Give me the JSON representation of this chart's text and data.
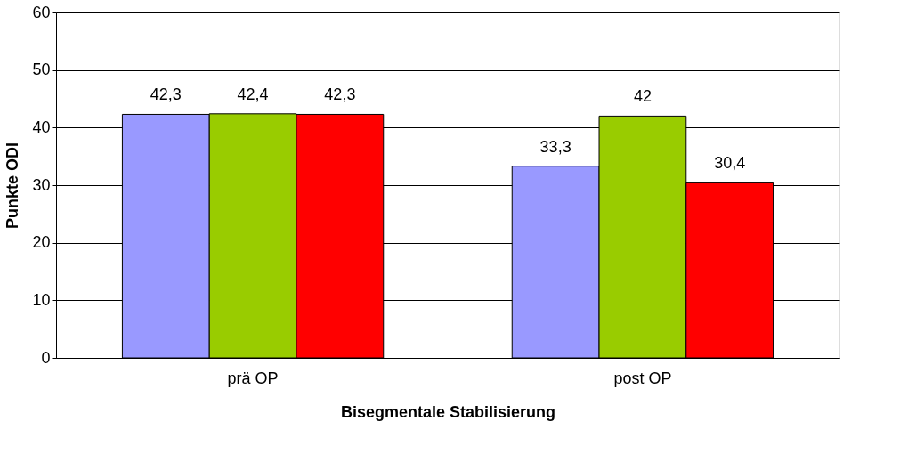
{
  "chart_data": {
    "type": "bar",
    "xlabel": "Bisegmentale Stabilisierung",
    "ylabel": "Punkte ODI",
    "categories": [
      "prä OP",
      "post OP"
    ],
    "series": [
      {
        "color": "#9999ff",
        "values": [
          42.3,
          33.3
        ],
        "value_labels": [
          "42,3",
          "33,3"
        ]
      },
      {
        "color": "#99cc00",
        "values": [
          42.4,
          42
        ],
        "value_labels": [
          "42,4",
          "42"
        ]
      },
      {
        "color": "#ff0000",
        "values": [
          42.3,
          30.4
        ],
        "value_labels": [
          "42,3",
          "30,4"
        ]
      }
    ],
    "ylim": [
      0,
      60
    ],
    "yticks": [
      0,
      10,
      20,
      30,
      40,
      50,
      60
    ],
    "grid": "y"
  }
}
